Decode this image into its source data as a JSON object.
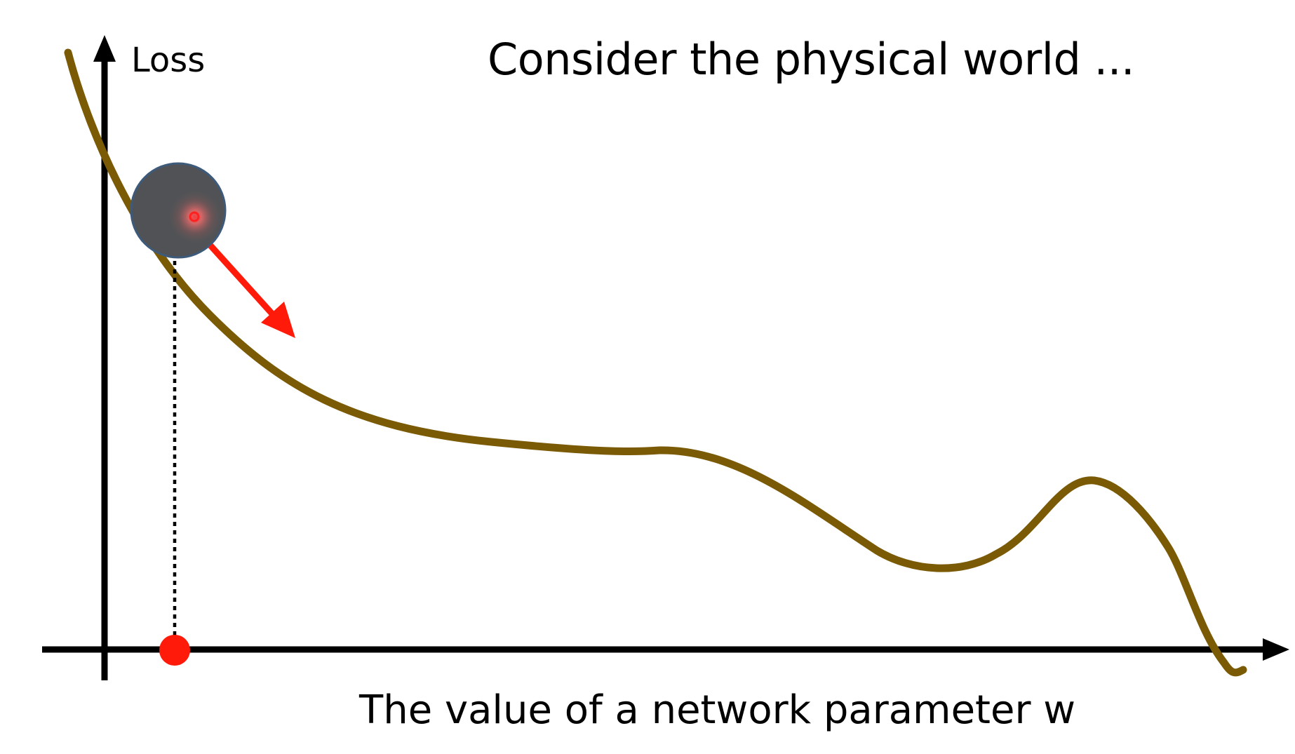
{
  "diagram": {
    "title": "Consider the physical world ...",
    "y_axis_label": "Loss",
    "x_axis_label": "The value of a network parameter w"
  },
  "colors": {
    "curve": "#7a5a05",
    "axes": "#000000",
    "ball_fill": "#505255",
    "ball_edge": "#3e5a7a",
    "arrow": "#ff1a0a",
    "marker": "#ff1a0a",
    "dotted_line": "#000000"
  },
  "icons": {
    "ball": "ball-icon",
    "arrow": "downhill-arrow-icon",
    "marker": "parameter-marker-icon"
  }
}
